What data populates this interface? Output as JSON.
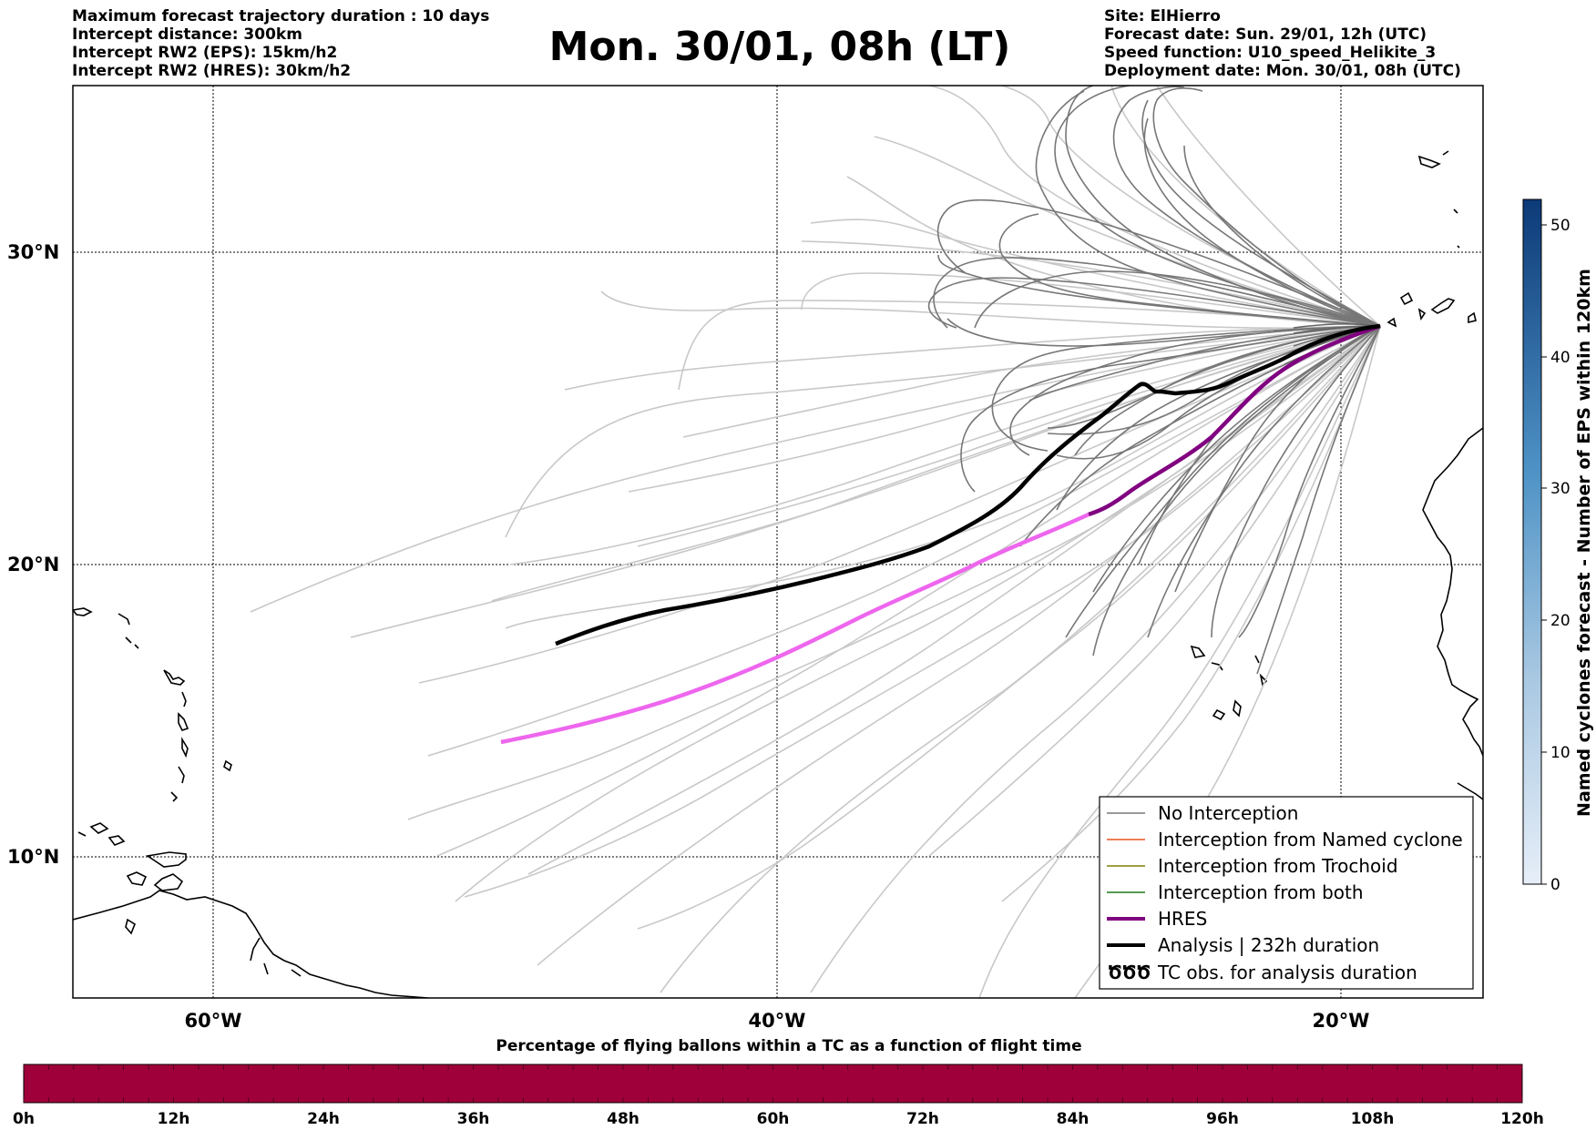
{
  "header": {
    "left_lines": [
      "Maximum forecast trajectory duration : 10 days",
      "Intercept distance: 300km",
      "Intercept RW2 (EPS):  15km/h2",
      "Intercept RW2 (HRES): 30km/h2"
    ],
    "title": "Mon. 30/01, 08h (LT)",
    "right_lines": [
      "Site: ElHierro",
      "Forecast date: Sun. 29/01, 12h (UTC)",
      "Speed function: U10_speed_Helikite_3",
      "Deployment date: Mon. 30/01, 08h (UTC)"
    ]
  },
  "map": {
    "lat_labels": [
      "30°N",
      "20°N",
      "10°N"
    ],
    "lon_labels": [
      "60°W",
      "40°W",
      "20°W"
    ],
    "colors": {
      "no_interception": "#777777",
      "eps_light": "#c8c8c8",
      "named_cyclone": "#e8541e",
      "trochoid": "#808000",
      "both": "#1a7a1a",
      "hres": "#800080",
      "hres_light": "#ee66ee",
      "analysis": "#000000"
    }
  },
  "legend": {
    "items": [
      "No Interception",
      "Interception from Named cyclone",
      "Interception from Trochoid",
      "Interception from both",
      "HRES",
      "Analysis | 232h duration",
      "TC obs. for analysis duration"
    ],
    "tc_symbol": "ԾԾԾ"
  },
  "colorbar": {
    "label": "Named cyclones forecast - Number of EPS within 120km",
    "ticks": [
      "0",
      "10",
      "20",
      "30",
      "40",
      "50"
    ],
    "low_color": "#e6eef8",
    "high_color": "#0c3a78"
  },
  "progress_bar": {
    "label": "Percentage of flying ballons within a TC as a function of flight time",
    "ticks": [
      "0h",
      "12h",
      "24h",
      "36h",
      "48h",
      "60h",
      "72h",
      "84h",
      "96h",
      "108h",
      "120h"
    ],
    "color": "#a0003a"
  }
}
